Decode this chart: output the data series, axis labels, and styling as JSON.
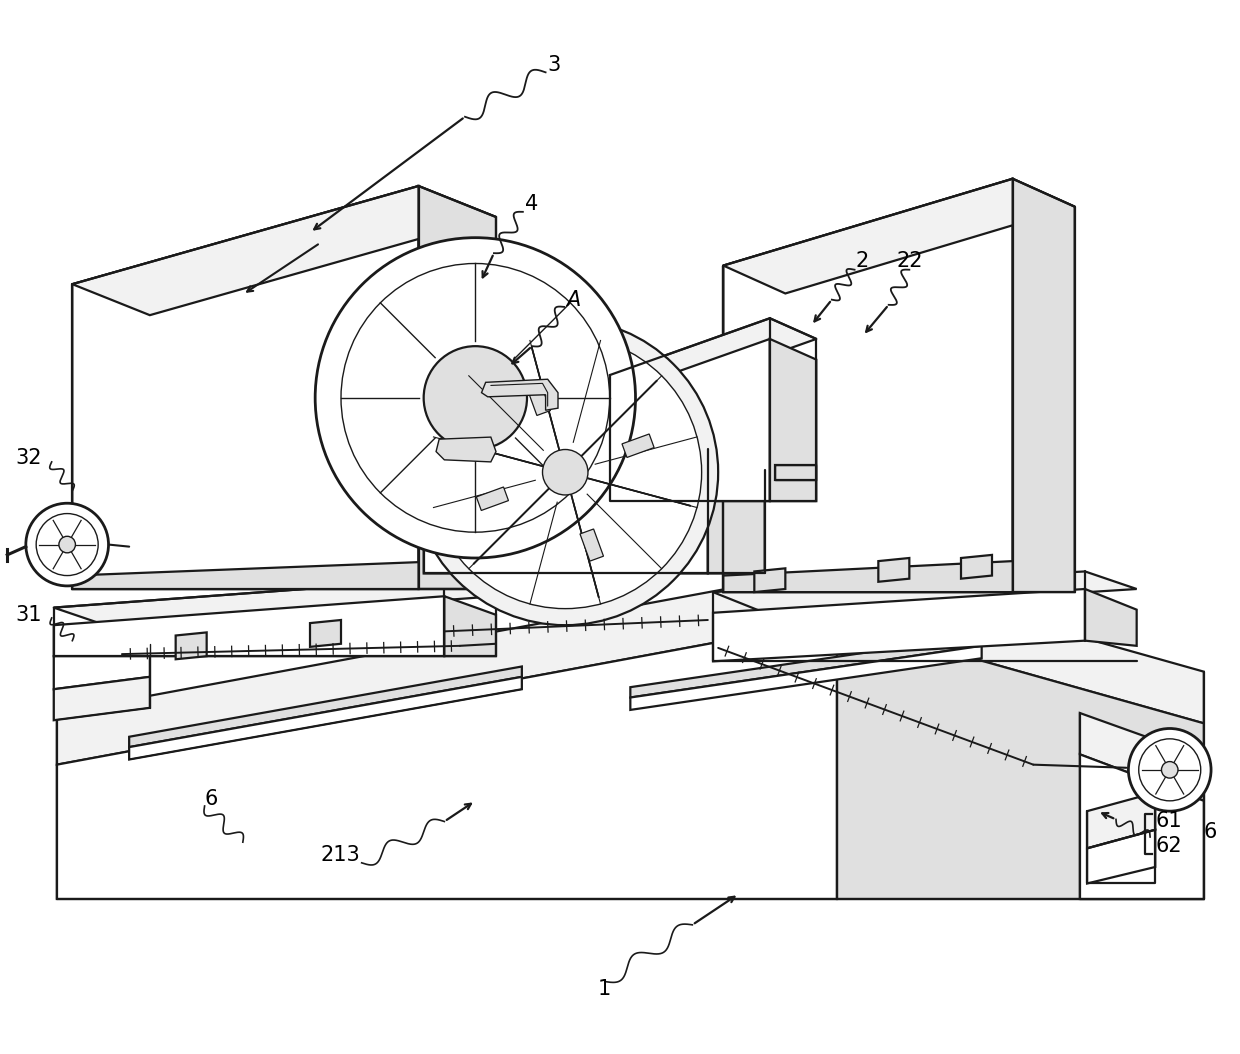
{
  "fig_width": 12.4,
  "fig_height": 10.54,
  "bg_color": "#ffffff",
  "lc": "#1a1a1a",
  "lw_main": 1.6,
  "lw_thin": 1.0,
  "lw_thick": 2.0,
  "label_fontsize": 15,
  "fc_white": "#ffffff",
  "fc_light": "#f2f2f2",
  "fc_mid": "#e0e0e0",
  "fc_dark": "#cccccc"
}
